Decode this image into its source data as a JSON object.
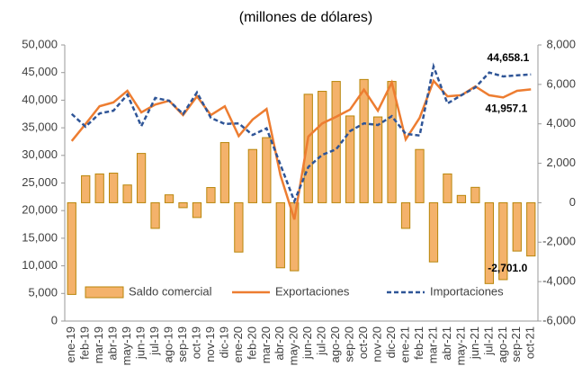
{
  "chart_data": {
    "type": "combo",
    "title": "(millones de dólares)",
    "categories": [
      "ene-19",
      "feb-19",
      "mar-19",
      "abr-19",
      "may-19",
      "jun-19",
      "jul-19",
      "ago-19",
      "sep-19",
      "oct-19",
      "nov-19",
      "dic-19",
      "ene-20",
      "feb-20",
      "mar-20",
      "abr-20",
      "may-20",
      "jun-20",
      "jul-20",
      "ago-20",
      "sep-20",
      "oct-20",
      "nov-20",
      "dic-20",
      "ene-21",
      "feb-21",
      "mar-21",
      "abr-21",
      "may-21",
      "jun-21",
      "jul-21",
      "ago-21",
      "sep-21",
      "oct-21"
    ],
    "series": [
      {
        "name": "Saldo comercial",
        "type": "bar",
        "axis": "y2",
        "color": "#f4b26b",
        "stroke": "#b8860b",
        "values": [
          -4650,
          1370,
          1460,
          1500,
          900,
          2500,
          -1300,
          400,
          -250,
          -750,
          770,
          3050,
          -2500,
          2700,
          3300,
          -3300,
          -3450,
          5500,
          5650,
          6150,
          4400,
          6250,
          4350,
          6150,
          -1300,
          2700,
          -3000,
          1460,
          370,
          780,
          -4100,
          -3900,
          -2450,
          -2701.0
        ],
        "value_labels": [
          null,
          null,
          null,
          null,
          null,
          null,
          null,
          null,
          null,
          null,
          null,
          null,
          null,
          null,
          null,
          null,
          null,
          null,
          null,
          null,
          null,
          null,
          null,
          null,
          null,
          null,
          null,
          null,
          null,
          null,
          null,
          null,
          null,
          "-2,701.0"
        ]
      },
      {
        "name": "Exportaciones",
        "type": "line",
        "color": "#ed7d31",
        "values": [
          32600,
          35700,
          38900,
          39600,
          41700,
          37800,
          39200,
          39900,
          37300,
          40700,
          37300,
          38900,
          33500,
          36500,
          38400,
          26400,
          18400,
          33400,
          35800,
          37000,
          38300,
          41900,
          38100,
          43200,
          32900,
          36800,
          43500,
          40700,
          40900,
          42500,
          40900,
          40500,
          41700,
          41957.1
        ],
        "value_labels": [
          null,
          null,
          null,
          null,
          null,
          null,
          null,
          null,
          null,
          null,
          null,
          null,
          null,
          null,
          null,
          null,
          null,
          null,
          null,
          null,
          null,
          null,
          null,
          null,
          null,
          null,
          null,
          null,
          null,
          null,
          null,
          null,
          null,
          "41,957.1"
        ]
      },
      {
        "name": "Importaciones",
        "type": "line",
        "dashed": true,
        "color": "#2f5597",
        "values": [
          37500,
          35200,
          37600,
          38100,
          41000,
          35300,
          40400,
          39900,
          37500,
          41400,
          36800,
          35700,
          35800,
          33700,
          34900,
          28300,
          21700,
          27900,
          30100,
          31100,
          34400,
          35800,
          35500,
          37100,
          33900,
          33600,
          46100,
          39400,
          40900,
          42300,
          45000,
          44300,
          44500,
          44658.1
        ],
        "value_labels": [
          null,
          null,
          null,
          null,
          null,
          null,
          null,
          null,
          null,
          null,
          null,
          null,
          null,
          null,
          null,
          null,
          null,
          null,
          null,
          null,
          null,
          null,
          null,
          null,
          null,
          null,
          null,
          null,
          null,
          null,
          null,
          null,
          null,
          "44,658.1"
        ]
      }
    ],
    "ylim": [
      0,
      50000
    ],
    "yticks": [
      0,
      {
        "value": 5000,
        "label": "5,000"
      },
      {
        "value": 10000,
        "label": "10,000"
      },
      {
        "value": 15000,
        "label": "15,000"
      },
      {
        "value": 20000,
        "label": "20,000"
      },
      {
        "value": 25000,
        "label": "25,000"
      },
      {
        "value": 30000,
        "label": "30,000"
      },
      {
        "value": 35000,
        "label": "35,000"
      },
      {
        "value": 40000,
        "label": "40,000"
      },
      {
        "value": 45000,
        "label": "45,000"
      },
      {
        "value": 50000,
        "label": "50,000"
      }
    ],
    "y2lim": [
      -6000,
      8000
    ],
    "y2ticks": [
      {
        "value": -6000,
        "label": "-6,000"
      },
      {
        "value": -4000,
        "label": "-4,000"
      },
      {
        "value": -2000,
        "label": "-2,000"
      },
      0,
      {
        "value": 2000,
        "label": "2,000"
      },
      {
        "value": 4000,
        "label": "4,000"
      },
      {
        "value": 6000,
        "label": "6,000"
      },
      {
        "value": 8000,
        "label": "8,000"
      }
    ],
    "legend": "bottom"
  }
}
